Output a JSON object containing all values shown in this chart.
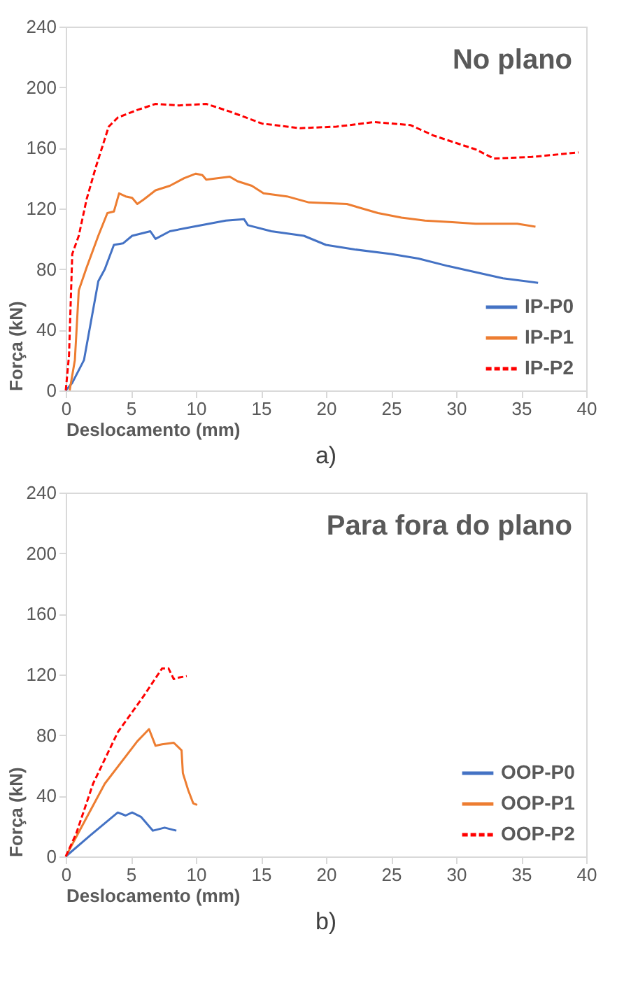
{
  "chart_data": [
    {
      "type": "line",
      "title": "No plano",
      "xlabel": "Deslocamento (mm)",
      "ylabel": "Força (kN)",
      "annotations": [
        "a)"
      ],
      "xlim": [
        0,
        40
      ],
      "xticks": [
        0,
        5,
        10,
        15,
        20,
        25,
        30,
        35,
        40
      ],
      "ylim": [
        0,
        240
      ],
      "yticks": [
        0,
        40,
        80,
        120,
        160,
        200,
        240
      ],
      "grid": false,
      "legend": "bottom right",
      "marker": "none",
      "series": [
        {
          "name": "IP-P0",
          "color": "#4472c4",
          "line_style": "solid",
          "x": [
            0,
            0.5,
            1.4,
            2.5,
            3.0,
            3.7,
            4.4,
            5.1,
            6.5,
            6.9,
            8,
            9.8,
            12.3,
            13.7,
            14,
            15.8,
            18.3,
            20,
            22.2,
            25,
            27.1,
            29.4,
            31.5,
            33.6,
            36.3
          ],
          "values": [
            0,
            5,
            20,
            72,
            80,
            96,
            97,
            102,
            105,
            100,
            105,
            108,
            112,
            113,
            109,
            105,
            102,
            96,
            93,
            90,
            87,
            82,
            78,
            74,
            71
          ]
        },
        {
          "name": "IP-P1",
          "color": "#ed7d31",
          "line_style": "solid",
          "x": [
            0.3,
            0.7,
            1.0,
            1.6,
            2.5,
            3.2,
            3.7,
            4.1,
            4.6,
            5.1,
            5.5,
            6.0,
            6.9,
            8,
            9.1,
            10,
            10.5,
            10.8,
            12.6,
            13.2,
            14.3,
            15.2,
            17,
            18.7,
            21.6,
            24,
            25.8,
            27.6,
            29.7,
            31.5,
            34.7,
            36.1
          ],
          "values": [
            0,
            20,
            66,
            81,
            102,
            117,
            118,
            130,
            128,
            127,
            123,
            126,
            132,
            135,
            140,
            143,
            142,
            139,
            141,
            138,
            135,
            130,
            128,
            124,
            123,
            117,
            114,
            112,
            111,
            110,
            110,
            108
          ]
        },
        {
          "name": "IP-P2",
          "color": "#ff0000",
          "line_style": "dashed",
          "x": [
            0,
            0.25,
            0.5,
            1.0,
            1.6,
            2.3,
            3.3,
            4.0,
            5.5,
            6.9,
            8.7,
            10.8,
            12.6,
            15.1,
            18,
            20.8,
            23.7,
            26.5,
            28.3,
            31.5,
            32.9,
            35.8,
            39.4
          ],
          "values": [
            0,
            23,
            90,
            102,
            126,
            147,
            174,
            180,
            185,
            189,
            188,
            189,
            184,
            176,
            173,
            174,
            177,
            175,
            168,
            159,
            153,
            154,
            157
          ]
        }
      ]
    },
    {
      "type": "line",
      "title": "Para fora do plano",
      "xlabel": "Deslocamento (mm)",
      "ylabel": "Força (kN)",
      "annotations": [
        "b)"
      ],
      "xlim": [
        0,
        40
      ],
      "xticks": [
        0,
        5,
        10,
        15,
        20,
        25,
        30,
        35,
        40
      ],
      "ylim": [
        0,
        240
      ],
      "yticks": [
        0,
        40,
        80,
        120,
        160,
        200,
        240
      ],
      "grid": false,
      "legend": "bottom right",
      "marker": "none",
      "series": [
        {
          "name": "OOP-P0",
          "color": "#4472c4",
          "line_style": "solid",
          "x": [
            0,
            1.9,
            4.0,
            4.6,
            5.1,
            5.8,
            6.7,
            7.6,
            8.5
          ],
          "values": [
            0,
            14,
            29,
            27,
            29,
            26,
            17,
            19,
            17
          ]
        },
        {
          "name": "OOP-P1",
          "color": "#ed7d31",
          "line_style": "solid",
          "x": [
            0,
            3.0,
            5.5,
            6.4,
            6.9,
            7.4,
            8.3,
            8.9,
            9.0,
            9.4,
            9.8,
            10.1
          ],
          "values": [
            0,
            48,
            76,
            84,
            73,
            74,
            75,
            70,
            55,
            44,
            35,
            34
          ]
        },
        {
          "name": "OOP-P2",
          "color": "#ff0000",
          "line_style": "dashed",
          "x": [
            0,
            0.8,
            2.1,
            4.0,
            6.0,
            7.4,
            7.9,
            8.3,
            8.7,
            9.3
          ],
          "values": [
            0,
            15,
            48,
            82,
            106,
            124,
            124,
            117,
            118,
            119
          ]
        }
      ]
    }
  ]
}
